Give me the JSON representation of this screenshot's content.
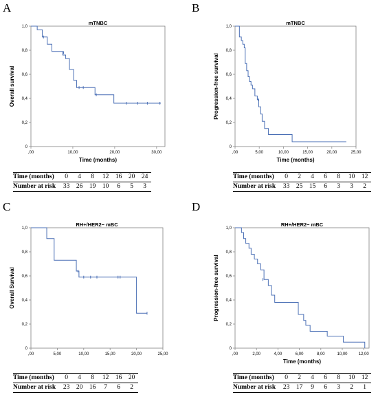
{
  "colors": {
    "curve": "#4a6fb5",
    "axis": "#8c8c8c",
    "frame": "#7f7f7f"
  },
  "panels": [
    {
      "letter": "A",
      "risk_table": {
        "time_label": "Time (months)",
        "risk_label": "Number at risk",
        "times": [
          "0",
          "4",
          "8",
          "12",
          "16",
          "20",
          "24"
        ],
        "counts": [
          "33",
          "26",
          "19",
          "10",
          "6",
          "5",
          "3"
        ]
      }
    },
    {
      "letter": "B",
      "risk_table": {
        "time_label": "Time (months)",
        "risk_label": "Number at risk",
        "times": [
          "0",
          "2",
          "4",
          "6",
          "8",
          "10",
          "12"
        ],
        "counts": [
          "33",
          "25",
          "15",
          "6",
          "3",
          "3",
          "2"
        ]
      }
    },
    {
      "letter": "C",
      "risk_table": {
        "time_label": "Time (months)",
        "risk_label": "Number at risk",
        "times": [
          "0",
          "4",
          "8",
          "12",
          "16",
          "20"
        ],
        "counts": [
          "23",
          "20",
          "16",
          "7",
          "6",
          "2"
        ]
      }
    },
    {
      "letter": "D",
      "risk_table": {
        "time_label": "Time (months)",
        "risk_label": "Number at risk",
        "times": [
          "0",
          "2",
          "4",
          "6",
          "8",
          "10",
          "12"
        ],
        "counts": [
          "23",
          "17",
          "9",
          "6",
          "3",
          "2",
          "1"
        ]
      }
    }
  ],
  "chart_data": [
    {
      "type": "line",
      "title": "mTNBC",
      "xlabel": "Time (months)",
      "ylabel": "Overall survival",
      "xlim": [
        0,
        32
      ],
      "ylim": [
        0,
        1.0
      ],
      "xticks": [
        0,
        10,
        20,
        30
      ],
      "xtick_labels": [
        ",00",
        "10,00",
        "20,00",
        "30,00"
      ],
      "yticks": [
        0,
        0.2,
        0.4,
        0.6,
        0.8,
        1.0
      ],
      "ytick_labels": [
        "0",
        "0,2",
        "0,4",
        "0,6",
        "0,8",
        "1,0"
      ],
      "grid": false,
      "series": [
        {
          "x": [
            0,
            1.5,
            2.7,
            3.9,
            5.0,
            7.6,
            8.3,
            9.2,
            10.2,
            10.9,
            15.3,
            19.8
          ],
          "y": [
            1.0,
            0.97,
            0.91,
            0.85,
            0.79,
            0.76,
            0.73,
            0.64,
            0.55,
            0.49,
            0.43,
            0.36
          ],
          "end_x": 31,
          "censored": [
            [
              3.0,
              0.91
            ],
            [
              7.8,
              0.78
            ],
            [
              11.5,
              0.49
            ],
            [
              12.5,
              0.49
            ],
            [
              15.6,
              0.43
            ],
            [
              22.8,
              0.36
            ],
            [
              25.5,
              0.36
            ],
            [
              27.8,
              0.36
            ],
            [
              30.8,
              0.36
            ]
          ]
        }
      ]
    },
    {
      "type": "line",
      "title": "mTNBC",
      "xlabel": "Time (months)",
      "ylabel": "Progression-free survival",
      "xlim": [
        0,
        25
      ],
      "ylim": [
        0,
        1.0
      ],
      "xticks": [
        0,
        5,
        10,
        15,
        20,
        25
      ],
      "xtick_labels": [
        ",00",
        "5,00",
        "10,00",
        "15,00",
        "20,00",
        "25,00"
      ],
      "yticks": [
        0,
        0.2,
        0.4,
        0.6,
        0.8,
        1.0
      ],
      "ytick_labels": [
        "0",
        "0,2",
        "0,4",
        "0,6",
        "0,8",
        "1,0"
      ],
      "grid": false,
      "series": [
        {
          "x": [
            0,
            0.9,
            1.3,
            1.6,
            1.9,
            2.1,
            2.4,
            2.7,
            3.0,
            3.3,
            3.6,
            4.1,
            4.6,
            4.9,
            5.3,
            5.6,
            6.1,
            6.9,
            11.8
          ],
          "y": [
            1.0,
            0.91,
            0.88,
            0.85,
            0.82,
            0.69,
            0.63,
            0.58,
            0.54,
            0.51,
            0.48,
            0.42,
            0.39,
            0.33,
            0.27,
            0.21,
            0.15,
            0.1,
            0.04
          ],
          "end_x": 23.0,
          "censored": [
            [
              4.8,
              0.39
            ]
          ]
        }
      ]
    },
    {
      "type": "line",
      "title": "RH+/HER2− mBC",
      "xlabel": "",
      "ylabel": "Overall Survival",
      "xlim": [
        0,
        25
      ],
      "ylim": [
        0,
        1.0
      ],
      "xticks": [
        0,
        5,
        10,
        15,
        20,
        25
      ],
      "xtick_labels": [
        ",00",
        "5,00",
        "10,00",
        "15,00",
        "20,00",
        "25,00"
      ],
      "yticks": [
        0,
        0.2,
        0.4,
        0.6,
        0.8,
        1.0
      ],
      "ytick_labels": [
        "0",
        "0,2",
        "0,4",
        "0,6",
        "0,8",
        "1,0"
      ],
      "grid": false,
      "series": [
        {
          "x": [
            0,
            3.0,
            4.4,
            8.6,
            9.1,
            20.0
          ],
          "y": [
            1.0,
            0.91,
            0.73,
            0.64,
            0.59,
            0.29
          ],
          "end_x": 22.0,
          "censored": [
            [
              8.9,
              0.64
            ],
            [
              10.0,
              0.59
            ],
            [
              11.3,
              0.59
            ],
            [
              12.5,
              0.59
            ],
            [
              16.5,
              0.59
            ],
            [
              16.9,
              0.59
            ],
            [
              22.0,
              0.29
            ]
          ]
        }
      ]
    },
    {
      "type": "line",
      "title": "RH+/HER2− mBC",
      "xlabel": "Time (months)",
      "ylabel": "Progression-free survival",
      "xlim": [
        0,
        12.5
      ],
      "ylim": [
        0,
        1.0
      ],
      "xticks": [
        0,
        2,
        4,
        6,
        8,
        10,
        12
      ],
      "xtick_labels": [
        ",00",
        "2,00",
        "4,00",
        "6,00",
        "8,00",
        "10,00",
        "12,00"
      ],
      "yticks": [
        0,
        0.2,
        0.4,
        0.6,
        0.8,
        1.0
      ],
      "ytick_labels": [
        "0",
        "0,2",
        "0,4",
        "0,6",
        "0,8",
        "1,0"
      ],
      "grid": false,
      "series": [
        {
          "x": [
            0,
            0.6,
            0.8,
            1.0,
            1.3,
            1.5,
            1.8,
            2.1,
            2.4,
            2.7,
            3.1,
            3.4,
            3.7,
            5.9,
            6.4,
            6.6,
            7.0,
            8.6,
            10.1,
            12.1
          ],
          "y": [
            1.0,
            0.96,
            0.91,
            0.87,
            0.83,
            0.78,
            0.74,
            0.7,
            0.65,
            0.57,
            0.52,
            0.44,
            0.38,
            0.28,
            0.23,
            0.19,
            0.14,
            0.1,
            0.05,
            0.0
          ],
          "end_x": 12.1,
          "censored": [
            [
              2.6,
              0.57
            ]
          ]
        }
      ]
    }
  ]
}
